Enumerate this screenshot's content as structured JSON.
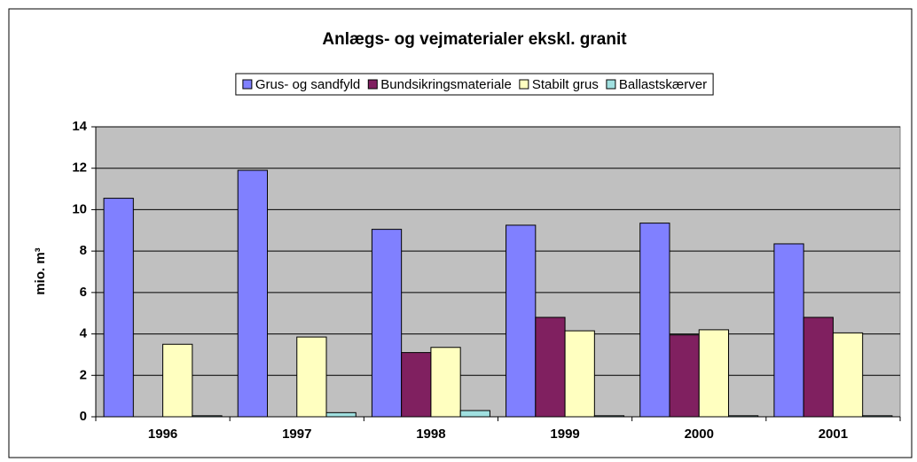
{
  "chart_data": {
    "type": "bar",
    "title": "Anlægs- og vejmaterialer ekskl. granit",
    "ylabel": "mio. m³",
    "categories": [
      "1996",
      "1997",
      "1998",
      "1999",
      "2000",
      "2001"
    ],
    "series": [
      {
        "name": "Grus- og sandfyld",
        "color": "#8080ff",
        "values": [
          10.55,
          11.9,
          9.05,
          9.25,
          9.35,
          8.35
        ]
      },
      {
        "name": "Bundsikringsmateriale",
        "color": "#802060",
        "values": [
          null,
          null,
          3.1,
          4.8,
          3.95,
          4.8
        ]
      },
      {
        "name": "Stabilt grus",
        "color": "#ffffc0",
        "values": [
          3.5,
          3.85,
          3.35,
          4.15,
          4.2,
          4.05
        ]
      },
      {
        "name": "Ballastskærver",
        "color": "#a0e0e0",
        "values": [
          0.05,
          0.2,
          0.3,
          0.05,
          0.05,
          0.05
        ]
      }
    ],
    "ylim": [
      0,
      14
    ],
    "yticks": [
      0,
      2,
      4,
      6,
      8,
      10,
      12,
      14
    ],
    "grid": true,
    "legend": "top"
  }
}
